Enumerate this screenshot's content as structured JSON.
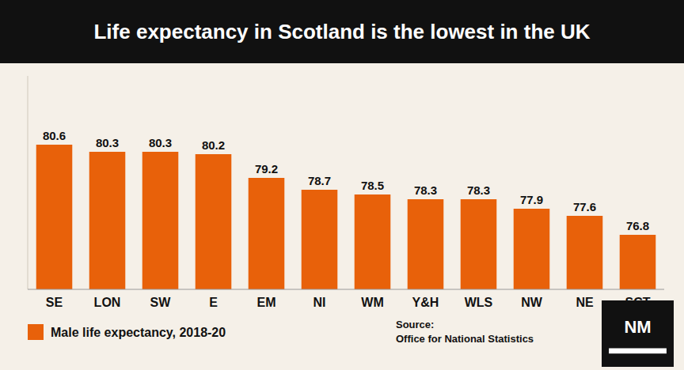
{
  "chart_data": {
    "type": "bar",
    "title": "Life expectancy in Scotland is the lowest in the UK",
    "categories": [
      "SE",
      "LON",
      "SW",
      "E",
      "EM",
      "NI",
      "WM",
      "Y&H",
      "WLS",
      "NW",
      "NE",
      "SCT"
    ],
    "series": [
      {
        "name": "Male life expectancy, 2018-20",
        "color": "#E8610A",
        "values": [
          80.6,
          80.3,
          80.3,
          80.2,
          79.2,
          78.7,
          78.5,
          78.3,
          78.3,
          77.9,
          77.6,
          76.8
        ]
      }
    ],
    "ylim": [
      74.5,
      83.5
    ],
    "data_labels": true,
    "tick_labels": "x",
    "grid": false,
    "annotations": [
      "Source:\nOffice for National Statistics",
      "NM"
    ]
  }
}
